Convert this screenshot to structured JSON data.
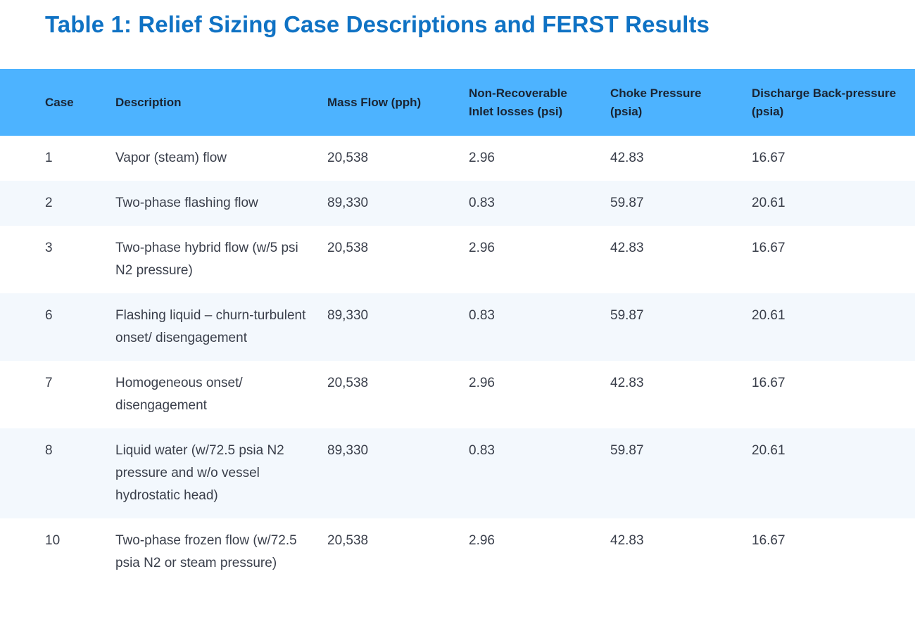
{
  "title": "Table 1: Relief Sizing Case Descriptions and FERST Results",
  "table": {
    "headers": [
      "Case",
      "Description",
      "Mass Flow (pph)",
      "Non-Recoverable Inlet losses (psi)",
      "Choke Pressure (psia)",
      "Discharge Back-pressure (psia)"
    ],
    "rows": [
      [
        "1",
        "Vapor (steam) flow",
        "20,538",
        "2.96",
        "42.83",
        "16.67"
      ],
      [
        "2",
        "Two-phase flashing flow",
        "89,330",
        "0.83",
        "59.87",
        "20.61"
      ],
      [
        "3",
        "Two-phase hybrid flow (w/5 psi N2 pressure)",
        "20,538",
        "2.96",
        "42.83",
        "16.67"
      ],
      [
        "6",
        "Flashing liquid – churn-turbulent onset/ disengagement",
        "89,330",
        "0.83",
        "59.87",
        "20.61"
      ],
      [
        "7",
        "Homogeneous onset/ disengagement",
        "20,538",
        "2.96",
        "42.83",
        "16.67"
      ],
      [
        "8",
        "Liquid water (w/72.5 psia N2 pressure and w/o vessel hydrostatic head)",
        "89,330",
        "0.83",
        "59.87",
        "20.61"
      ],
      [
        "10",
        "Two-phase frozen flow (w/72.5 psia N2 or steam pressure)",
        "20,538",
        "2.96",
        "42.83",
        "16.67"
      ]
    ]
  },
  "colors": {
    "title": "#0f72c4",
    "header_bg": "#4db3ff",
    "row_alt_bg": "#f3f8fd"
  }
}
